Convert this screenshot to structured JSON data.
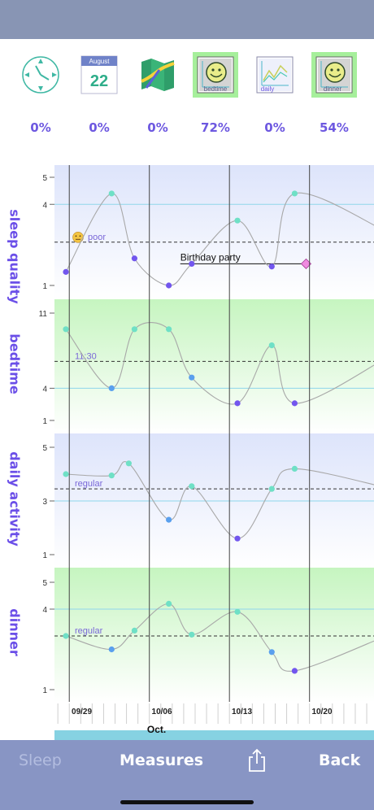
{
  "toolbar_icons": [
    {
      "name": "clock-icon",
      "selected": false
    },
    {
      "name": "calendar-icon",
      "month": "August",
      "day": "22",
      "selected": false
    },
    {
      "name": "map-icon",
      "selected": false
    },
    {
      "name": "bedtime-smiley-icon",
      "caption": "bedtime",
      "selected": true
    },
    {
      "name": "daily-chart-icon",
      "caption": "daily",
      "selected": false
    },
    {
      "name": "dinner-smiley-icon",
      "caption": "dinner",
      "selected": true
    }
  ],
  "percentages": [
    "0%",
    "0%",
    "0%",
    "72%",
    "0%",
    "54%"
  ],
  "charts": [
    {
      "label": "sleep quality",
      "ylim": [
        1,
        5
      ],
      "ticks": [
        "5",
        "4",
        "1"
      ],
      "tick_values": [
        5,
        4,
        1
      ],
      "ref_line": {
        "value": 2.6,
        "label": "poor",
        "emoji": "😐"
      },
      "blue_line": 4,
      "bg": "blue",
      "points": [
        {
          "x": 0,
          "y": 1.5
        },
        {
          "x": 4,
          "y": 4.4
        },
        {
          "x": 6,
          "y": 2.0
        },
        {
          "x": 9,
          "y": 1.0
        },
        {
          "x": 11,
          "y": 1.8
        },
        {
          "x": 15,
          "y": 3.4
        },
        {
          "x": 18,
          "y": 1.7
        },
        {
          "x": 20,
          "y": 4.4
        },
        {
          "x": 28,
          "y": 3.0
        }
      ],
      "annotation": {
        "text": "Birthday party",
        "x_start": 10,
        "x_end": 21,
        "y": 1.8
      }
    },
    {
      "label": "bedtime",
      "ylim": [
        1,
        11
      ],
      "ticks": [
        "11",
        "4",
        "1"
      ],
      "tick_values": [
        11,
        4,
        1
      ],
      "ref_line": {
        "value": 6.5,
        "label": "11:30"
      },
      "blue_line": 4,
      "bg": "green",
      "points": [
        {
          "x": 0,
          "y": 9.5
        },
        {
          "x": 4,
          "y": 4.0
        },
        {
          "x": 6,
          "y": 9.5
        },
        {
          "x": 9,
          "y": 9.5
        },
        {
          "x": 11,
          "y": 5.0
        },
        {
          "x": 15,
          "y": 2.6
        },
        {
          "x": 18,
          "y": 8.0
        },
        {
          "x": 20,
          "y": 2.6
        },
        {
          "x": 28,
          "y": 6.8
        }
      ]
    },
    {
      "label": "daily activity",
      "ylim": [
        1,
        5
      ],
      "ticks": [
        "5",
        "3",
        "1"
      ],
      "tick_values": [
        5,
        3,
        1
      ],
      "ref_line": {
        "value": 3.45,
        "label": "regular"
      },
      "blue_line": 3,
      "bg": "blue",
      "points": [
        {
          "x": 0,
          "y": 4.0
        },
        {
          "x": 4,
          "y": 3.95
        },
        {
          "x": 5.5,
          "y": 4.4
        },
        {
          "x": 9,
          "y": 2.3
        },
        {
          "x": 11,
          "y": 3.55
        },
        {
          "x": 15,
          "y": 1.6
        },
        {
          "x": 18,
          "y": 3.45
        },
        {
          "x": 20,
          "y": 4.2
        },
        {
          "x": 28,
          "y": 3.5
        }
      ]
    },
    {
      "label": "dinner",
      "ylim": [
        1,
        5
      ],
      "ticks": [
        "5",
        "4",
        "1"
      ],
      "tick_values": [
        5,
        4,
        1
      ],
      "ref_line": {
        "value": 3.0,
        "label": "regular"
      },
      "blue_line": 4,
      "bg": "green",
      "points": [
        {
          "x": 0,
          "y": 3.0
        },
        {
          "x": 4,
          "y": 2.5
        },
        {
          "x": 6,
          "y": 3.2
        },
        {
          "x": 9,
          "y": 4.2
        },
        {
          "x": 11,
          "y": 3.05
        },
        {
          "x": 15,
          "y": 3.9
        },
        {
          "x": 18,
          "y": 2.4
        },
        {
          "x": 20,
          "y": 1.7
        },
        {
          "x": 28,
          "y": 3.0
        }
      ]
    }
  ],
  "x_axis": {
    "date_labels": [
      {
        "x": 0,
        "text": "09/29"
      },
      {
        "x": 7,
        "text": "10/06"
      },
      {
        "x": 14,
        "text": "10/13"
      },
      {
        "x": 21,
        "text": "10/20"
      }
    ],
    "month_label": "Oct.",
    "month_x": 7
  },
  "bottom_bar": {
    "left": "Sleep",
    "center": "Measures",
    "right": "Back"
  },
  "colors": {
    "accent": "#6b4fe8",
    "point_teal": "#6fe0c6",
    "point_purple": "#7256ee",
    "point_blue": "#5aa0ee",
    "blue_band": "#dde4fb",
    "green_band": "#c6f5c0",
    "share_icon": "#ffffff"
  }
}
